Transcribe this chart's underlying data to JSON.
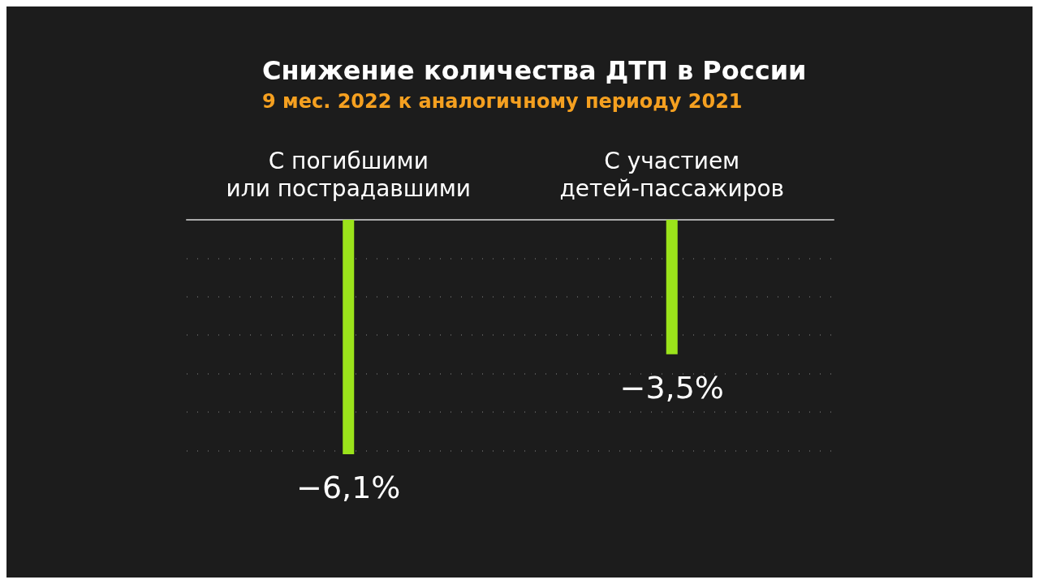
{
  "chart_data": {
    "type": "bar",
    "title": "Снижение количества ДТП в России",
    "subtitle": "9 мес. 2022 к аналогичному периоду 2021",
    "categories": [
      "С погибшими\nили пострадавшими",
      "С участием\nдетей-пассажиров"
    ],
    "values": [
      -6.1,
      -3.5
    ],
    "value_labels": [
      "−6,1%",
      "−3,5%"
    ],
    "color": "#9be31b",
    "yticks": [
      {
        "value": -6,
        "label": null
      },
      {
        "value": -5,
        "label": null
      },
      {
        "value": -4,
        "label": null
      },
      {
        "value": -3,
        "label": null
      },
      {
        "value": -2,
        "label": null
      },
      {
        "value": -1,
        "label": null
      }
    ],
    "grid": "y",
    "tick_labels": "x"
  }
}
